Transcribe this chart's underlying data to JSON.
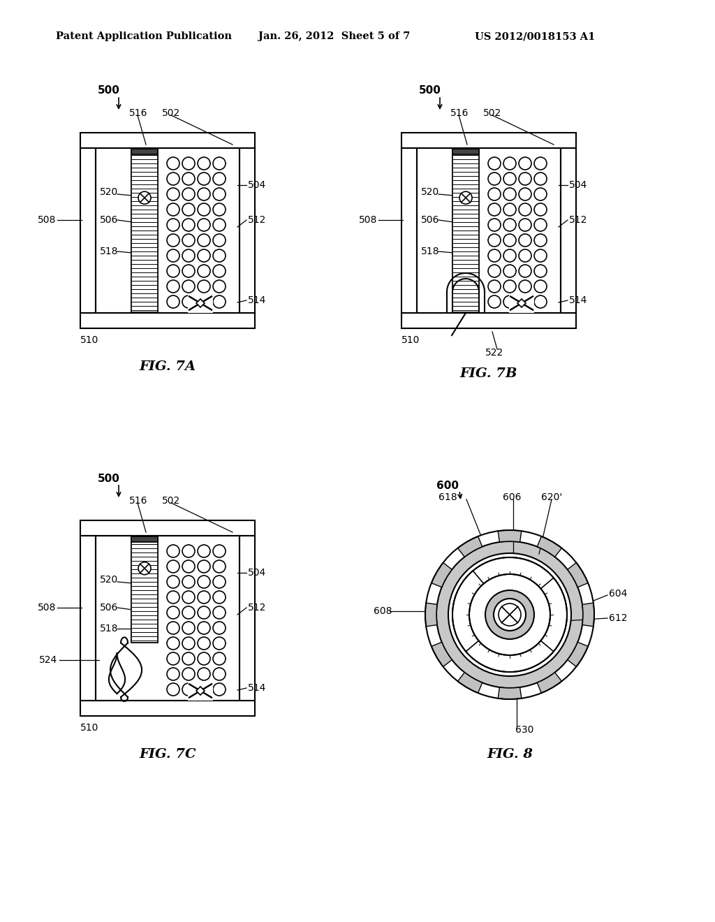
{
  "title_left": "Patent Application Publication",
  "title_mid": "Jan. 26, 2012  Sheet 5 of 7",
  "title_right": "US 2012/0018153 A1",
  "fig7a_label": "FIG. 7A",
  "fig7b_label": "FIG. 7B",
  "fig7c_label": "FIG. 7C",
  "fig8_label": "FIG. 8",
  "bg_color": "#ffffff",
  "line_color": "#000000"
}
